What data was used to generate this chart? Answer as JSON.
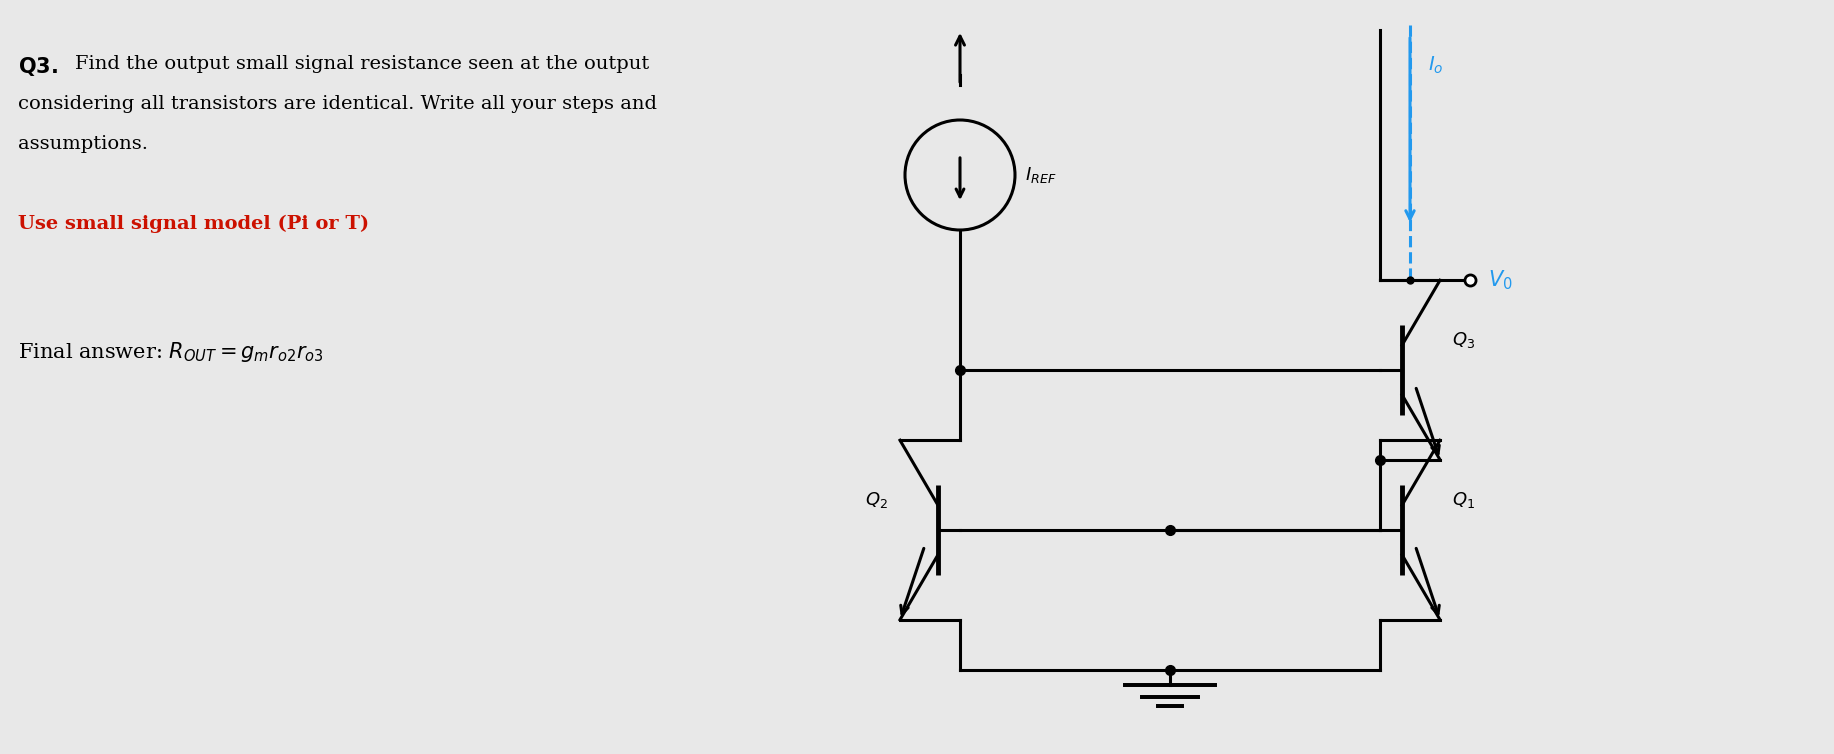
{
  "bg_color": "#e8e8e8",
  "lc": "#000000",
  "cyan": "#2299ee",
  "lw": 2.2,
  "lw_thick": 3.5,
  "q1_label": "$Q_1$",
  "q2_label": "$Q_2$",
  "q3_label": "$Q_3$",
  "iref_label": "$I_{REF}$",
  "io_label": "$I_o$",
  "vo_label": "$V_0$"
}
